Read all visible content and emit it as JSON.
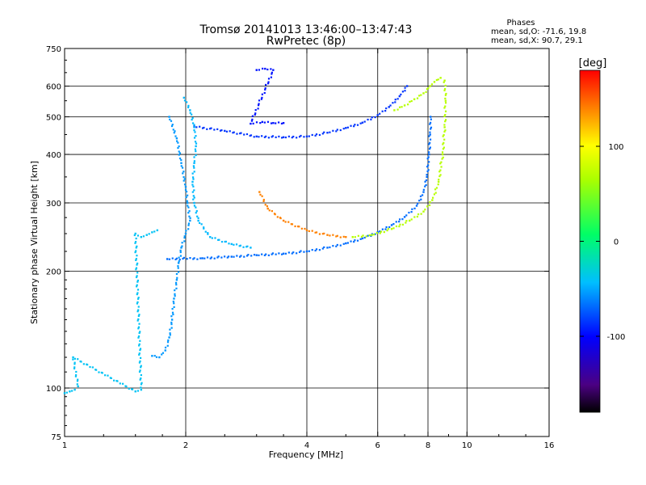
{
  "title": "Tromsø 20141013 13:46:00–13:47:43",
  "subtitle": "RwPretec (8p)",
  "phase_stats": {
    "heading": "Phases",
    "o_line": "mean, sd,O: -71.6, 19.8",
    "x_line": "mean, sd,X:  90.7, 29.1"
  },
  "colorbar": {
    "unit": "[deg]",
    "range": [
      -180,
      180
    ],
    "ticks": [
      {
        "value": 100,
        "label": "100"
      },
      {
        "value": 0,
        "label": "0"
      },
      {
        "value": -100,
        "label": "-100"
      }
    ]
  },
  "chart_data": {
    "type": "scatter",
    "title": "Tromsø 20141013 13:46:00–13:47:43",
    "subtitle": "RwPretec (8p)",
    "xlabel": "Frequency [MHz]",
    "ylabel": "Stationary phase Virtual Height [km]",
    "xscale": "log",
    "yscale": "log",
    "xlim": [
      1,
      16
    ],
    "ylim": [
      75,
      750
    ],
    "xticks": [
      1,
      2,
      4,
      6,
      8,
      10,
      16
    ],
    "yticks": [
      75,
      100,
      200,
      300,
      400,
      500,
      600,
      750
    ],
    "grid_x": [
      2,
      4,
      6,
      8,
      10
    ],
    "grid_y": [
      100,
      200,
      300,
      400,
      500,
      600
    ],
    "color_scale": "phase [deg]",
    "series": [
      {
        "phase": -68,
        "points": [
          [
            1.8,
            215
          ],
          [
            2.2,
            216
          ],
          [
            2.6,
            218
          ],
          [
            3.0,
            220
          ],
          [
            3.5,
            222
          ],
          [
            4.0,
            225
          ],
          [
            4.5,
            230
          ],
          [
            5.0,
            236
          ],
          [
            5.5,
            243
          ],
          [
            6.0,
            252
          ],
          [
            6.5,
            263
          ],
          [
            7.0,
            276
          ],
          [
            7.5,
            295
          ],
          [
            7.8,
            320
          ],
          [
            7.95,
            350
          ],
          [
            8.05,
            400
          ],
          [
            8.1,
            450
          ],
          [
            8.12,
            500
          ]
        ]
      },
      {
        "phase": -85,
        "points": [
          [
            2.1,
            472
          ],
          [
            2.5,
            460
          ],
          [
            3.0,
            445
          ],
          [
            3.5,
            443
          ],
          [
            4.0,
            445
          ],
          [
            4.5,
            455
          ],
          [
            5.0,
            468
          ],
          [
            5.5,
            483
          ],
          [
            6.0,
            505
          ],
          [
            6.4,
            530
          ],
          [
            6.8,
            565
          ],
          [
            7.1,
            600
          ]
        ]
      },
      {
        "phase": -55,
        "points": [
          [
            1.82,
            500
          ],
          [
            1.9,
            440
          ],
          [
            1.95,
            380
          ],
          [
            2.0,
            330
          ],
          [
            2.02,
            300
          ],
          [
            2.05,
            270
          ],
          [
            2.0,
            250
          ],
          [
            1.95,
            230
          ],
          [
            1.92,
            210
          ],
          [
            1.9,
            190
          ],
          [
            1.87,
            170
          ],
          [
            1.85,
            150
          ],
          [
            1.82,
            135
          ],
          [
            1.78,
            125
          ],
          [
            1.72,
            120
          ],
          [
            1.65,
            121
          ]
        ]
      },
      {
        "phase": -45,
        "points": [
          [
            1.98,
            560
          ],
          [
            2.05,
            520
          ],
          [
            2.1,
            470
          ],
          [
            2.12,
            420
          ],
          [
            2.1,
            380
          ],
          [
            2.08,
            340
          ],
          [
            2.1,
            300
          ],
          [
            2.15,
            270
          ],
          [
            2.3,
            245
          ],
          [
            2.6,
            235
          ],
          [
            2.9,
            230
          ]
        ]
      },
      {
        "phase": 140,
        "points": [
          [
            3.05,
            320
          ],
          [
            3.2,
            290
          ],
          [
            3.5,
            270
          ],
          [
            4.0,
            255
          ],
          [
            4.5,
            248
          ],
          [
            5.0,
            245
          ]
        ]
      },
      {
        "phase": 70,
        "points": [
          [
            5.2,
            245
          ],
          [
            5.8,
            248
          ],
          [
            6.5,
            257
          ],
          [
            7.2,
            270
          ],
          [
            7.8,
            285
          ],
          [
            8.2,
            305
          ],
          [
            8.5,
            340
          ],
          [
            8.7,
            400
          ],
          [
            8.8,
            470
          ],
          [
            8.85,
            550
          ],
          [
            8.8,
            620
          ],
          [
            8.6,
            630
          ],
          [
            8.3,
            615
          ],
          [
            8.1,
            600
          ],
          [
            7.8,
            575
          ],
          [
            7.4,
            555
          ],
          [
            7.0,
            535
          ],
          [
            6.6,
            520
          ]
        ]
      },
      {
        "phase": -95,
        "points": [
          [
            3.0,
            660
          ],
          [
            3.15,
            665
          ],
          [
            3.3,
            660
          ],
          [
            2.9,
            480
          ],
          [
            3.1,
            485
          ],
          [
            3.3,
            482
          ],
          [
            3.5,
            482
          ]
        ]
      },
      {
        "phase": -40,
        "points": [
          [
            1.0,
            97
          ],
          [
            1.03,
            98
          ],
          [
            1.06,
            99
          ],
          [
            1.08,
            101
          ],
          [
            1.05,
            120
          ],
          [
            1.5,
            98
          ],
          [
            1.55,
            99
          ],
          [
            1.5,
            250
          ],
          [
            1.55,
            245
          ],
          [
            1.6,
            248
          ],
          [
            1.65,
            252
          ],
          [
            1.7,
            255
          ]
        ]
      }
    ]
  }
}
